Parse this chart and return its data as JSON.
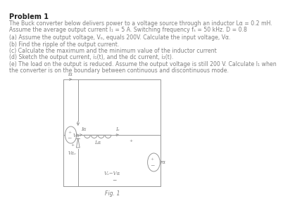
{
  "title": "Problem 1",
  "line1": "The Buck converter below delivers power to a voltage source through an inductor Lα = 0.2 mH.",
  "line2": "Assume the average output current I₁ = 5 A. Switching frequency fₛ = 50 kHz. D = 0.8",
  "qa": "(a) Assume the output voltage, Vₒ, equals 200V. Calculate the input voltage, Vα.",
  "qb": "(b) Find the ripple of the output current.",
  "qc": "(c) Calculate the maximum and the minimum value of the inductor current",
  "qd": "(d) Sketch the output current, i₁(t), and the dc current, i₂(t).",
  "qe1": "(e) The load on the output is reduced. Assume the output voltage is still 200 V. Calculate I₁ when",
  "qe2": "the converter is on the boundary between continuous and discontinuous mode.",
  "fig_label": "Fig. 1",
  "bg_color": "#ffffff",
  "text_color": "#808080",
  "title_color": "#222222",
  "circuit_color": "#999999"
}
